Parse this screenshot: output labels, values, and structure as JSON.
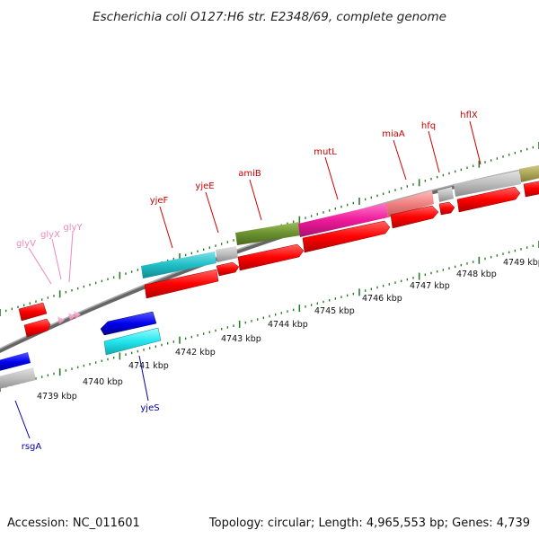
{
  "header": {
    "title": "Escherichia coli O127:H6 str. E2348/69, complete genome"
  },
  "footer": {
    "accession": "Accession: NC_011601",
    "summary": "Topology: circular; Length: 4,965,553 bp; Genes: 4,739"
  },
  "scale": {
    "ticks": [
      "4739 kbp",
      "4740 kbp",
      "4741 kbp",
      "4742 kbp",
      "4743 kbp",
      "4744 kbp",
      "4745 kbp",
      "4746 kbp",
      "4747 kbp",
      "4748 kbp",
      "4749 kbp"
    ]
  },
  "gene_labels": {
    "top": [
      "glyV",
      "glyX",
      "glyY",
      "yjeF",
      "yjeE",
      "amiB",
      "mutL",
      "miaA",
      "hfq",
      "hflX"
    ],
    "bottom": [
      "yjeS",
      "rsgA"
    ]
  },
  "colors": {
    "forward_label": "#cc0000",
    "reverse_label": "#0000aa",
    "trna_label": "#ee88bb",
    "cds": "#ff0000",
    "tick": "#2a7a2a",
    "backbone": "#888888"
  }
}
